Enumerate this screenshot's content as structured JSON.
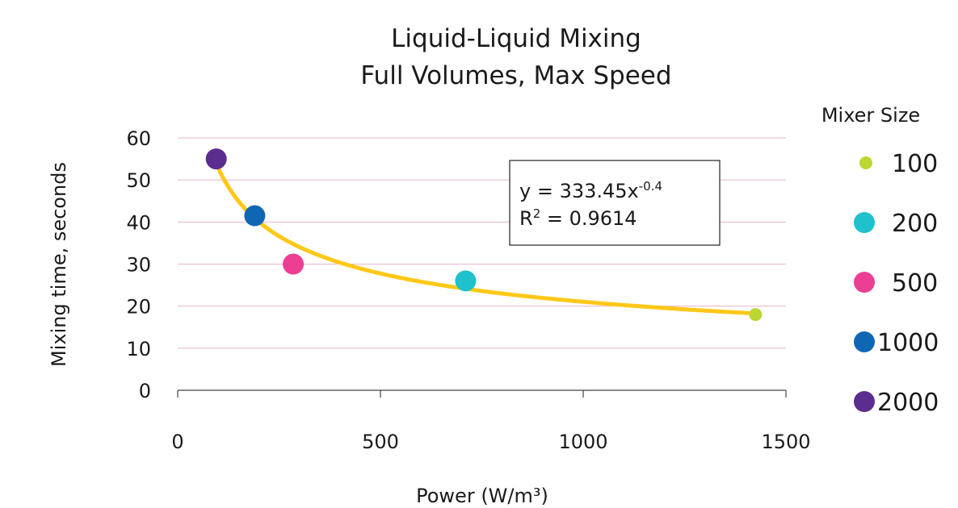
{
  "chart_data": {
    "type": "scatter",
    "title": [
      "Liquid-Liquid Mixing",
      "Full Volumes, Max Speed"
    ],
    "xlabel": "Power (W/m³)",
    "ylabel": "Mixing time, seconds",
    "xlim": [
      0,
      1500
    ],
    "ylim": [
      0,
      60
    ],
    "xticks": [
      0,
      500,
      1000,
      1500
    ],
    "yticks": [
      0,
      10,
      20,
      30,
      40,
      50,
      60
    ],
    "grid": "horizontal",
    "legend": {
      "title": "Mixer Size",
      "placement": "right"
    },
    "series": [
      {
        "name": "100",
        "color": "#bcd632",
        "size": "small",
        "points": [
          {
            "x": 1425,
            "y": 18
          }
        ]
      },
      {
        "name": "200",
        "color": "#1fc1cc",
        "size": "large",
        "points": [
          {
            "x": 710,
            "y": 26
          }
        ]
      },
      {
        "name": "500",
        "color": "#ec3f94",
        "size": "large",
        "points": [
          {
            "x": 285,
            "y": 30
          }
        ]
      },
      {
        "name": "1000",
        "color": "#0f67b4",
        "size": "large",
        "points": [
          {
            "x": 190,
            "y": 41.5
          }
        ]
      },
      {
        "name": "2000",
        "color": "#5b2d8e",
        "size": "large",
        "points": [
          {
            "x": 95,
            "y": 55
          }
        ]
      }
    ],
    "trendline": {
      "type": "power",
      "a": 333.45,
      "b": -0.4,
      "x_range": [
        95,
        1425
      ],
      "color": "#ffc819",
      "equation_label": "y = 333.45x",
      "equation_exponent": "-0.4",
      "r2_label": "R",
      "r2_exponent": "2",
      "r2_value": " = 0.9614"
    }
  }
}
